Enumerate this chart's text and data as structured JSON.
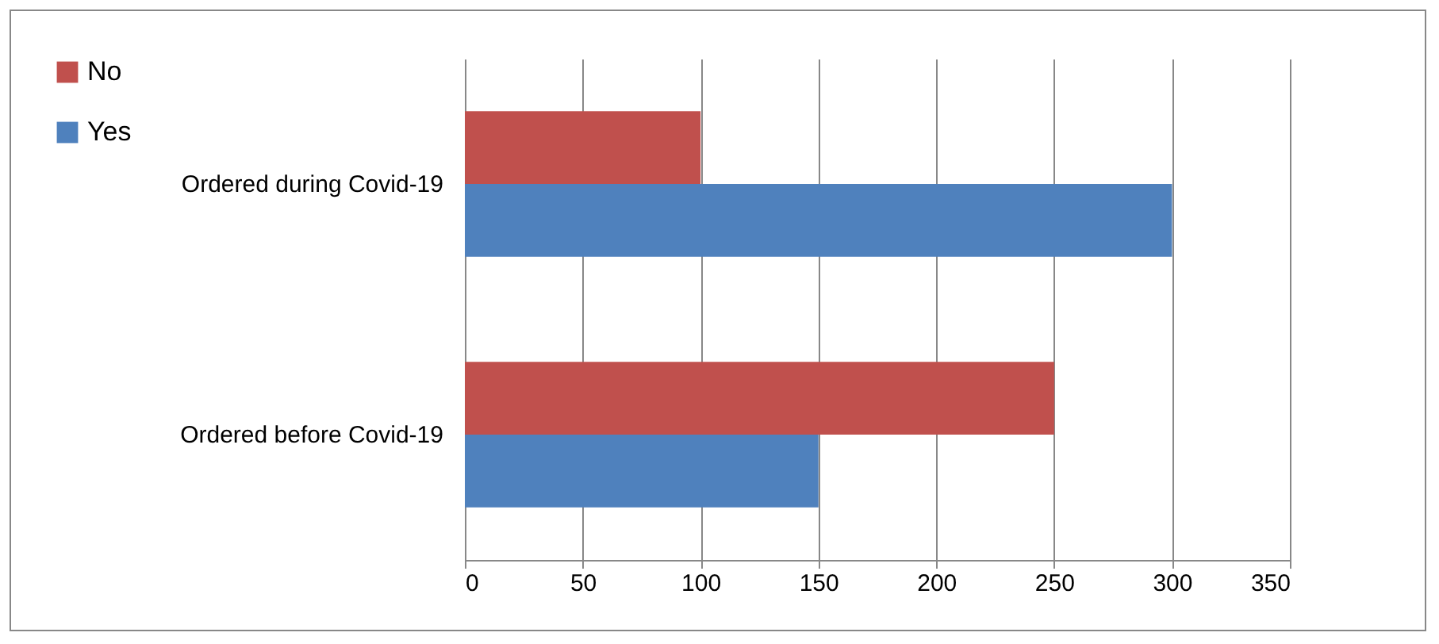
{
  "chart_data": {
    "type": "bar",
    "orientation": "horizontal",
    "categories": [
      "Ordered during Covid-19",
      "Ordered before Covid-19"
    ],
    "series": [
      {
        "name": "No",
        "color": "#c0504d",
        "values": [
          100,
          250
        ]
      },
      {
        "name": "Yes",
        "color": "#4f81bd",
        "values": [
          300,
          150
        ]
      }
    ],
    "xlim": [
      0,
      350
    ],
    "xticks": [
      0,
      50,
      100,
      150,
      200,
      250,
      300,
      350
    ],
    "grid": "x",
    "legend": "left"
  }
}
